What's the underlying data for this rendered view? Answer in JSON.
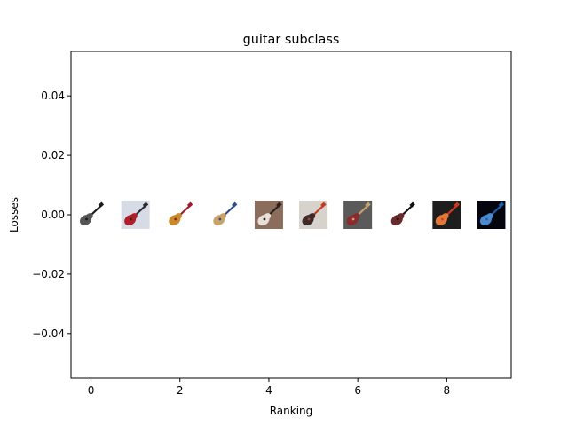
{
  "chart_data": {
    "type": "scatter",
    "title": "guitar subclass",
    "xlabel": "Ranking",
    "ylabel": "Losses",
    "xlim": [
      -0.45,
      9.45
    ],
    "ylim": [
      -0.055,
      0.055
    ],
    "x_ticks": [
      0,
      2,
      4,
      6,
      8
    ],
    "x_tick_labels": [
      "0",
      "2",
      "4",
      "6",
      "8"
    ],
    "y_ticks": [
      -0.04,
      -0.02,
      0.0,
      0.02,
      0.04
    ],
    "y_tick_labels": [
      "−0.04",
      "−0.02",
      "0.00",
      "0.02",
      "0.04"
    ],
    "grid": false,
    "marker": "image-thumbnail",
    "points": [
      {
        "x": 0,
        "y": 0.0,
        "thumb": "black guitar amp/gear",
        "colors": [
          "#ffffff",
          "#1a1a1a",
          "#555555"
        ]
      },
      {
        "x": 1,
        "y": 0.0,
        "thumb": "red and black electric guitar",
        "colors": [
          "#d7dbe6",
          "#2b2b2b",
          "#b01e2a"
        ]
      },
      {
        "x": 2,
        "y": 0.0,
        "thumb": "row of red guitars",
        "colors": [
          "#ffffff",
          "#a3172a",
          "#c98a2b"
        ]
      },
      {
        "x": 3,
        "y": 0.0,
        "thumb": "blue electric guitar",
        "colors": [
          "#ffffff",
          "#2f4f8a",
          "#caa36a"
        ]
      },
      {
        "x": 4,
        "y": 0.0,
        "thumb": "flying-v guitar",
        "colors": [
          "#8b6d5c",
          "#2a2020",
          "#e8e0d8"
        ]
      },
      {
        "x": 5,
        "y": 0.0,
        "thumb": "red electric guitar",
        "colors": [
          "#d8d2cc",
          "#c23a20",
          "#3a2a2a"
        ]
      },
      {
        "x": 6,
        "y": 0.0,
        "thumb": "wall of guitars",
        "colors": [
          "#5a5a5a",
          "#c9a36b",
          "#8a2a2a"
        ]
      },
      {
        "x": 7,
        "y": 0.0,
        "thumb": "guitar neck with headstock",
        "colors": [
          "#ffffff",
          "#111111",
          "#6a2a2a"
        ]
      },
      {
        "x": 8,
        "y": 0.0,
        "thumb": "red guitar with hand",
        "colors": [
          "#1e1e1e",
          "#d23a1c",
          "#e07a3a"
        ]
      },
      {
        "x": 9,
        "y": 0.0,
        "thumb": "blue guitar on black",
        "colors": [
          "#050510",
          "#1f5fa8",
          "#4a8ad0"
        ]
      }
    ]
  }
}
